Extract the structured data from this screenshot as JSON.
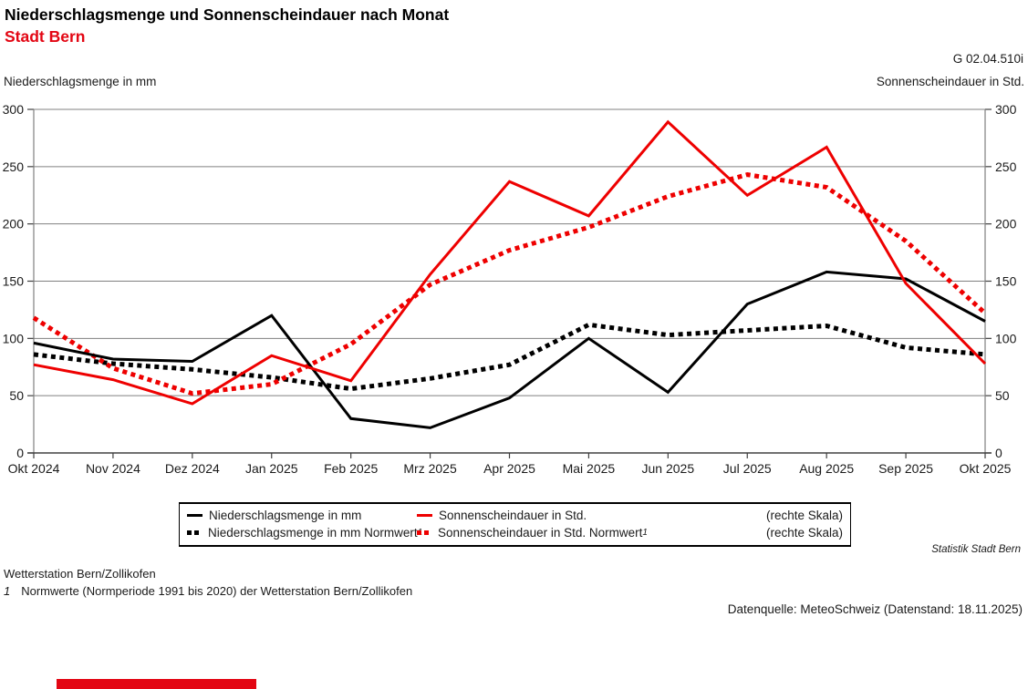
{
  "header": {
    "title": "Niederschlagsmenge und Sonnenscheindauer nach Monat",
    "subtitle": "Stadt Bern",
    "code": "G 02.04.510i"
  },
  "axes": {
    "left_label": "Niederschlagsmenge in mm",
    "right_label": "Sonnenscheindauer in Std."
  },
  "chart_data": {
    "type": "line",
    "categories": [
      "Okt 2024",
      "Nov 2024",
      "Dez 2024",
      "Jan 2025",
      "Feb 2025",
      "Mrz 2025",
      "Apr 2025",
      "Mai 2025",
      "Jun 2025",
      "Jul 2025",
      "Aug 2025",
      "Sep 2025",
      "Okt 2025"
    ],
    "series": [
      {
        "name": "Niederschlagsmenge in mm",
        "style": "solid",
        "color": "#000000",
        "axis": "left",
        "values": [
          96,
          82,
          80,
          120,
          30,
          22,
          48,
          100,
          53,
          130,
          158,
          152,
          115
        ]
      },
      {
        "name": "Niederschlagsmenge in mm Normwert",
        "style": "dotted",
        "color": "#000000",
        "axis": "left",
        "values": [
          86,
          78,
          73,
          66,
          56,
          65,
          77,
          112,
          103,
          107,
          111,
          92,
          86
        ]
      },
      {
        "name": "Sonnenscheindauer in Std.",
        "style": "solid",
        "color": "#ee0000",
        "axis": "right",
        "values": [
          77,
          64,
          43,
          85,
          63,
          156,
          237,
          207,
          289,
          225,
          267,
          148,
          78
        ]
      },
      {
        "name": "Sonnenscheindauer in Std. Normwert",
        "style": "dotted",
        "color": "#ee0000",
        "axis": "right",
        "values": [
          118,
          74,
          52,
          60,
          95,
          147,
          177,
          197,
          224,
          243,
          232,
          185,
          122
        ]
      }
    ],
    "y_ticks": [
      0,
      50,
      100,
      150,
      200,
      250,
      300
    ],
    "ylim": [
      0,
      300
    ],
    "grid": true,
    "legend_position": "bottom",
    "title": "Niederschlagsmenge und Sonnenscheindauer nach Monat",
    "xlabel": "",
    "ylabel_left": "Niederschlagsmenge in mm",
    "ylabel_right": "Sonnenscheindauer in Std."
  },
  "legend": {
    "rows": [
      {
        "col1": {
          "label": "Niederschlagsmenge in mm",
          "sup": ""
        },
        "col2": {
          "label": "Sonnenscheindauer in Std.",
          "sup": ""
        },
        "note": "(rechte Skala)"
      },
      {
        "col1": {
          "label": "Niederschlagsmenge in mm Normwert",
          "sup": "1"
        },
        "col2": {
          "label": "Sonnenscheindauer in Std. Normwert",
          "sup": "1"
        },
        "note": "(rechte Skala)"
      }
    ]
  },
  "footer": {
    "attribution": "Statistik Stadt Bern",
    "station": "Wetterstation Bern/Zollikofen",
    "footnote_marker": "1",
    "footnote_text": "Normwerte (Normperiode 1991 bis 2020) der Wetterstation Bern/Zollikofen",
    "source": "Datenquelle: MeteoSchweiz (Datenstand: 18.11.2025)"
  },
  "colors": {
    "accent_red": "#e30613",
    "line_red": "#ee0000",
    "line_black": "#000000",
    "grid": "#808080",
    "axis": "#404040"
  }
}
